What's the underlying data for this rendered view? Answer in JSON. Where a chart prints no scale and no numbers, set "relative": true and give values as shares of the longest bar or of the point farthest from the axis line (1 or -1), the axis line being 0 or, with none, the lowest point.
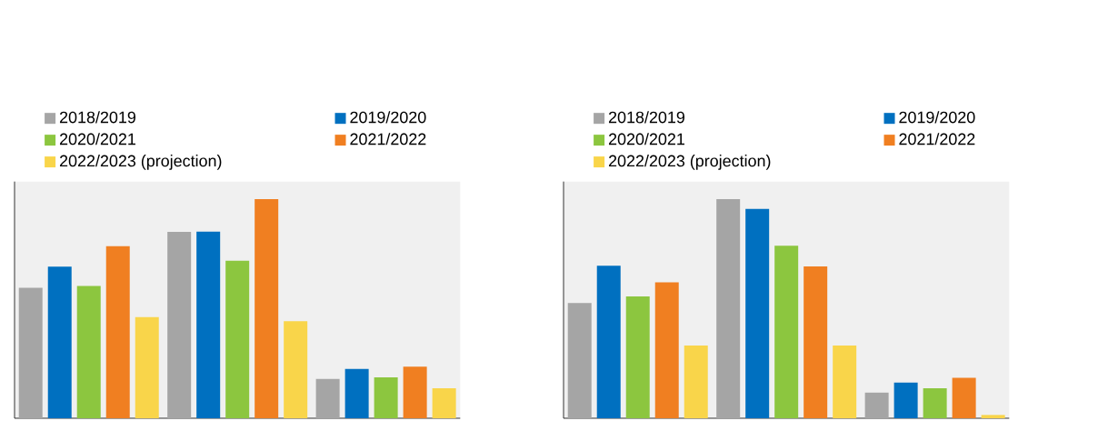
{
  "chart_data": [
    {
      "type": "bar",
      "relative": true,
      "legend": "top",
      "categories": [
        null,
        null,
        null
      ],
      "series": [
        {
          "name": "2018/2019",
          "color": "#a5a5a5",
          "values": [
            0.595,
            0.85,
            0.179
          ]
        },
        {
          "name": "2019/2020",
          "color": "#0070c0",
          "values": [
            0.692,
            0.851,
            0.225
          ]
        },
        {
          "name": "2020/2021",
          "color": "#8cc63f",
          "values": [
            0.604,
            0.719,
            0.187
          ]
        },
        {
          "name": "2021/2022",
          "color": "#f07f21",
          "values": [
            0.785,
            1,
            0.235
          ]
        },
        {
          "name": "2022/2023 (projection)",
          "color": "#f9d54a",
          "values": [
            0.461,
            0.443,
            0.137
          ]
        }
      ]
    },
    {
      "type": "bar",
      "relative": true,
      "legend": "top",
      "categories": [
        null,
        null,
        null
      ],
      "series": [
        {
          "name": "2018/2019",
          "color": "#a5a5a5",
          "values": [
            0.526,
            1,
            0.117
          ]
        },
        {
          "name": "2019/2020",
          "color": "#0070c0",
          "values": [
            0.696,
            0.955,
            0.163
          ]
        },
        {
          "name": "2020/2021",
          "color": "#8cc63f",
          "values": [
            0.556,
            0.787,
            0.137
          ]
        },
        {
          "name": "2021/2022",
          "color": "#f07f21",
          "values": [
            0.62,
            0.693,
            0.185
          ]
        },
        {
          "name": "2022/2023 (projection)",
          "color": "#f9d54a",
          "values": [
            0.332,
            0.332,
            0.015
          ]
        }
      ]
    }
  ]
}
